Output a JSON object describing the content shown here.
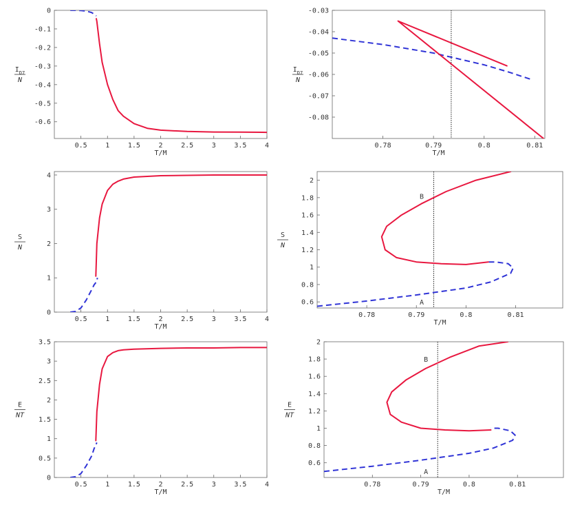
{
  "chart_data": [
    {
      "type": "line",
      "xlabel": "T/M",
      "ylabel_num": "I_D7",
      "ylabel_den": "N",
      "xlim": [
        0,
        4
      ],
      "ylim": [
        -0.69,
        0
      ],
      "xticks": [
        0.5,
        1,
        1.5,
        2,
        2.5,
        3,
        3.5,
        4
      ],
      "xtick_labels": [
        "0.5",
        "1",
        "1.5",
        "2",
        "2.5",
        "3",
        "3.5",
        "4"
      ],
      "yticks": [
        0,
        -0.1,
        -0.2,
        -0.3,
        -0.4,
        -0.5,
        -0.6
      ],
      "ytick_labels": [
        "0",
        "-0.1",
        "-0.2",
        "-0.3",
        "-0.4",
        "-0.5",
        "-0.6"
      ],
      "series": [
        {
          "style": "dashed",
          "x": [
            0.3,
            0.4,
            0.5,
            0.6,
            0.7,
            0.75,
            0.79
          ],
          "y": [
            0,
            0,
            -0.001,
            -0.004,
            -0.012,
            -0.02,
            -0.03
          ]
        },
        {
          "style": "solid",
          "x": [
            0.79,
            0.8,
            0.85,
            0.9,
            1.0,
            1.1,
            1.2,
            1.3,
            1.5,
            1.75,
            2.0,
            2.5,
            3.0,
            3.5,
            4.0
          ],
          "y": [
            -0.045,
            -0.06,
            -0.18,
            -0.28,
            -0.4,
            -0.48,
            -0.54,
            -0.57,
            -0.61,
            -0.635,
            -0.645,
            -0.652,
            -0.655,
            -0.656,
            -0.657
          ]
        }
      ]
    },
    {
      "type": "line",
      "xlabel": "T/M",
      "ylabel_num": "I_D7",
      "ylabel_den": "N",
      "xlim": [
        0.77,
        0.812
      ],
      "ylim": [
        -0.09,
        -0.03
      ],
      "xticks": [
        0.78,
        0.79,
        0.8,
        0.81
      ],
      "xtick_labels": [
        "0.78",
        "0.79",
        "0.8",
        "0.81"
      ],
      "yticks": [
        -0.03,
        -0.04,
        -0.05,
        -0.06,
        -0.07,
        -0.08
      ],
      "ytick_labels": [
        "-0.03",
        "-0.04",
        "-0.05",
        "-0.06",
        "-0.07",
        "-0.08"
      ],
      "vline": 0.7935,
      "series": [
        {
          "style": "dashed",
          "x": [
            0.77,
            0.78,
            0.79,
            0.8,
            0.805,
            0.8095
          ],
          "y": [
            -0.043,
            -0.046,
            -0.05,
            -0.0555,
            -0.059,
            -0.0625
          ]
        },
        {
          "style": "solid",
          "x": [
            0.8045,
            0.783,
            0.812
          ],
          "y": [
            -0.056,
            -0.035,
            -0.0905
          ]
        }
      ]
    },
    {
      "type": "line",
      "xlabel": "T/M",
      "ylabel_num": "S",
      "ylabel_den": "N",
      "xlim": [
        0,
        4
      ],
      "ylim": [
        0,
        4.1
      ],
      "xticks": [
        0.5,
        1,
        1.5,
        2,
        2.5,
        3,
        3.5,
        4
      ],
      "xtick_labels": [
        "0.5",
        "1",
        "1.5",
        "2",
        "2.5",
        "3",
        "3.5",
        "4"
      ],
      "yticks": [
        0,
        1,
        2,
        3,
        4
      ],
      "ytick_labels": [
        "0",
        "1",
        "2",
        "3",
        "4"
      ],
      "series": [
        {
          "style": "dashed",
          "x": [
            0.3,
            0.4,
            0.5,
            0.6,
            0.7,
            0.75,
            0.8,
            0.81
          ],
          "y": [
            0,
            0.02,
            0.12,
            0.35,
            0.65,
            0.8,
            0.9,
            1.0
          ]
        },
        {
          "style": "solid",
          "x": [
            0.78,
            0.8,
            0.85,
            0.9,
            1.0,
            1.1,
            1.2,
            1.3,
            1.5,
            2.0,
            2.5,
            3.0,
            3.5,
            4.0
          ],
          "y": [
            1.05,
            2.0,
            2.75,
            3.15,
            3.55,
            3.73,
            3.82,
            3.88,
            3.94,
            3.98,
            3.99,
            4.0,
            4.0,
            4.0
          ]
        }
      ]
    },
    {
      "type": "line",
      "xlabel": "T/M",
      "ylabel_num": "S",
      "ylabel_den": "N",
      "xlim": [
        0.77,
        0.8195
      ],
      "ylim": [
        0.53,
        2.1
      ],
      "xticks": [
        0.78,
        0.79,
        0.8,
        0.81
      ],
      "xtick_labels": [
        "0.78",
        "0.79",
        "0.8",
        "0.81"
      ],
      "yticks": [
        0.6,
        0.8,
        1,
        1.2,
        1.4,
        1.6,
        1.8,
        2
      ],
      "ytick_labels": [
        "0.6",
        "0.8",
        "1",
        "1.2",
        "1.4",
        "1.6",
        "1.8",
        "2"
      ],
      "vline": 0.7935,
      "annotations": [
        {
          "text": "B",
          "x": 0.7915,
          "y": 1.82
        },
        {
          "text": "A",
          "x": 0.7915,
          "y": 0.6
        }
      ],
      "series": [
        {
          "style": "dashed",
          "x": [
            0.77,
            0.78,
            0.79,
            0.8,
            0.805,
            0.809,
            0.8095,
            0.8085,
            0.806,
            0.8045
          ],
          "y": [
            0.55,
            0.61,
            0.68,
            0.76,
            0.83,
            0.93,
            0.99,
            1.04,
            1.06,
            1.06
          ]
        },
        {
          "style": "solid",
          "x": [
            0.8045,
            0.8,
            0.795,
            0.79,
            0.786,
            0.7837,
            0.783,
            0.784,
            0.787,
            0.791,
            0.796,
            0.802,
            0.809
          ],
          "y": [
            1.06,
            1.03,
            1.04,
            1.06,
            1.11,
            1.2,
            1.35,
            1.47,
            1.6,
            1.73,
            1.87,
            2.0,
            2.1
          ]
        }
      ]
    },
    {
      "type": "line",
      "xlabel": "T/M",
      "ylabel_num": "E",
      "ylabel_den": "NT",
      "xlim": [
        0,
        4
      ],
      "ylim": [
        0,
        3.5
      ],
      "xticks": [
        0.5,
        1,
        1.5,
        2,
        2.5,
        3,
        3.5,
        4
      ],
      "xtick_labels": [
        "0.5",
        "1",
        "1.5",
        "2",
        "2.5",
        "3",
        "3.5",
        "4"
      ],
      "yticks": [
        0,
        0.5,
        1,
        1.5,
        2,
        2.5,
        3,
        3.5
      ],
      "ytick_labels": [
        "0",
        "0.5",
        "1",
        "1.5",
        "2",
        "2.5",
        "3",
        "3.5"
      ],
      "series": [
        {
          "style": "dashed",
          "x": [
            0.3,
            0.4,
            0.5,
            0.6,
            0.7,
            0.75,
            0.8
          ],
          "y": [
            0,
            0.02,
            0.1,
            0.3,
            0.55,
            0.75,
            0.9
          ]
        },
        {
          "style": "solid",
          "x": [
            0.78,
            0.8,
            0.85,
            0.9,
            1.0,
            1.1,
            1.2,
            1.3,
            1.5,
            2.0,
            2.5,
            3.0,
            3.5,
            4.0
          ],
          "y": [
            0.95,
            1.7,
            2.4,
            2.8,
            3.12,
            3.22,
            3.27,
            3.29,
            3.31,
            3.33,
            3.34,
            3.34,
            3.35,
            3.35
          ]
        }
      ]
    },
    {
      "type": "line",
      "xlabel": "T/M",
      "ylabel_num": "E",
      "ylabel_den": "NT",
      "xlim": [
        0.77,
        0.8195
      ],
      "ylim": [
        0.43,
        2.0
      ],
      "xticks": [
        0.78,
        0.79,
        0.8,
        0.81
      ],
      "xtick_labels": [
        "0.78",
        "0.79",
        "0.8",
        "0.81"
      ],
      "yticks": [
        0.6,
        0.8,
        1,
        1.2,
        1.4,
        1.6,
        1.8,
        2
      ],
      "ytick_labels": [
        "0.6",
        "0.8",
        "1",
        "1.2",
        "1.4",
        "1.6",
        "1.8",
        "2"
      ],
      "vline": 0.7935,
      "annotations": [
        {
          "text": "B",
          "x": 0.7915,
          "y": 1.8
        },
        {
          "text": "A",
          "x": 0.7915,
          "y": 0.5
        }
      ],
      "series": [
        {
          "style": "dashed",
          "x": [
            0.77,
            0.78,
            0.79,
            0.8,
            0.805,
            0.809,
            0.8095,
            0.8085,
            0.806,
            0.8045
          ],
          "y": [
            0.5,
            0.56,
            0.63,
            0.71,
            0.77,
            0.86,
            0.92,
            0.97,
            1.0,
            1.0
          ]
        },
        {
          "style": "solid",
          "x": [
            0.8045,
            0.8,
            0.795,
            0.79,
            0.786,
            0.7837,
            0.783,
            0.784,
            0.787,
            0.791,
            0.796,
            0.802,
            0.808
          ],
          "y": [
            0.98,
            0.97,
            0.98,
            1.0,
            1.07,
            1.16,
            1.3,
            1.42,
            1.56,
            1.69,
            1.82,
            1.95,
            2.0
          ]
        }
      ]
    }
  ],
  "colors": {
    "solid": "#e8173f",
    "dashed": "#2f33d6",
    "frame": "#666666"
  }
}
